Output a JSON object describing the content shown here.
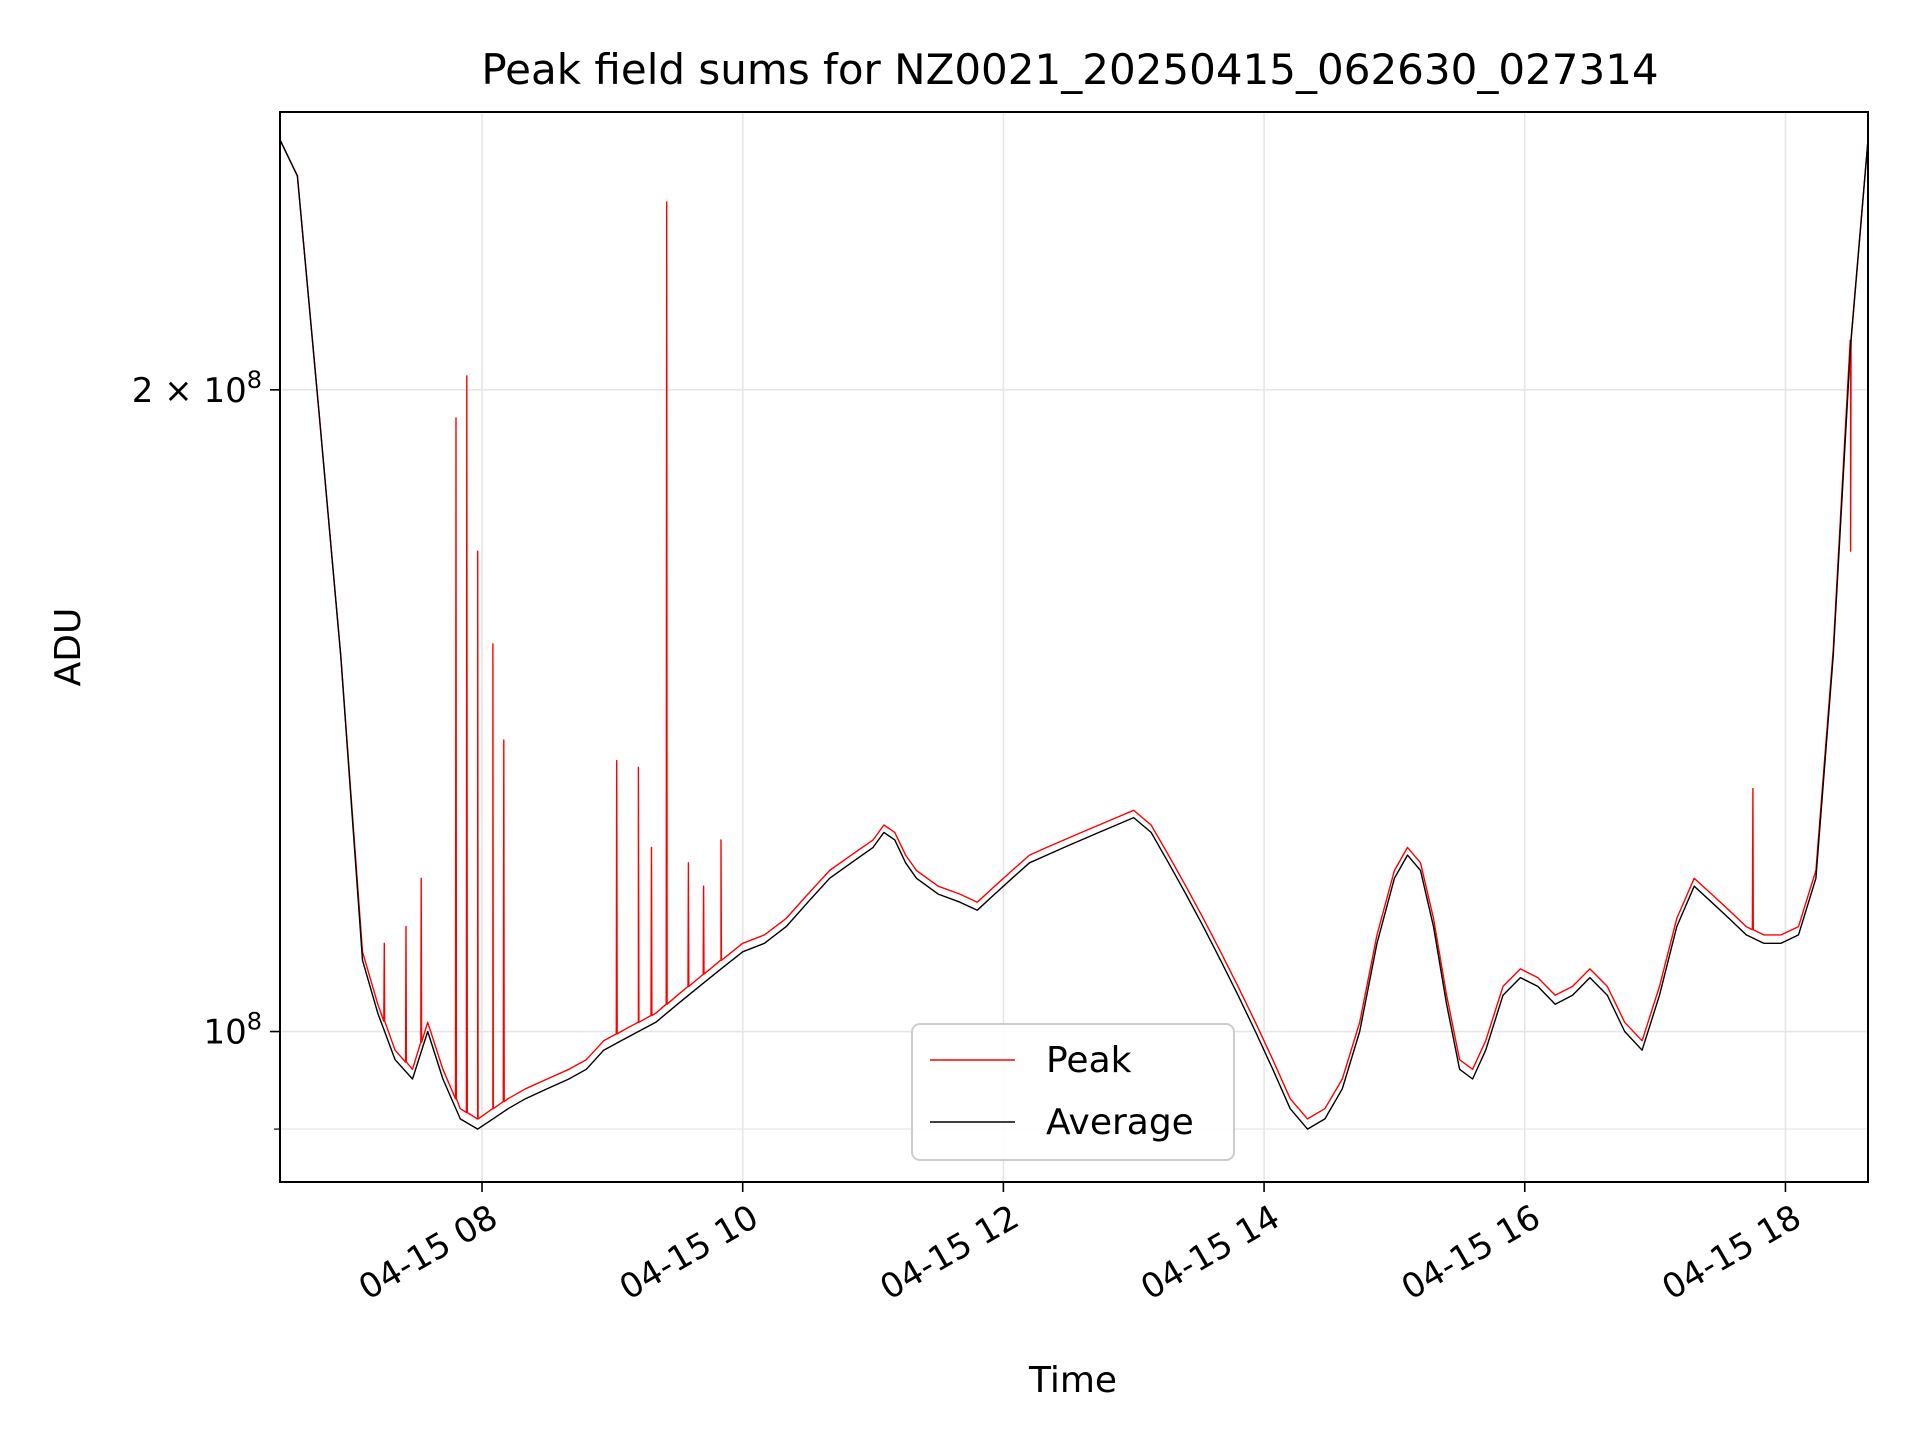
{
  "chart_data": {
    "type": "line",
    "title": "Peak field sums for NZ0021_20250415_062630_027314",
    "xlabel": "Time",
    "ylabel": "ADU",
    "yscale": "log",
    "xlim": [
      "04-15 06:27",
      "04-15 18:38"
    ],
    "ylim": [
      85000000,
      270000000
    ],
    "grid": true,
    "legend_placement": "lower center",
    "x_ticks": [
      {
        "t": "2025-04-15T08:00",
        "label": "04-15 08"
      },
      {
        "t": "2025-04-15T10:00",
        "label": "04-15 10"
      },
      {
        "t": "2025-04-15T12:00",
        "label": "04-15 12"
      },
      {
        "t": "2025-04-15T14:00",
        "label": "04-15 14"
      },
      {
        "t": "2025-04-15T16:00",
        "label": "04-15 16"
      },
      {
        "t": "2025-04-15T18:00",
        "label": "04-15 18"
      }
    ],
    "y_ticks": [
      {
        "value": 100000000,
        "base": "10",
        "exp": "8",
        "coef": ""
      },
      {
        "value": 200000000,
        "base": "10",
        "exp": "8",
        "coef": "2 × "
      }
    ],
    "y_minor_ticks": [
      90000000
    ],
    "series": [
      {
        "name": "Average",
        "color": "#000000",
        "points": [
          [
            "06:27",
            262
          ],
          [
            "06:35",
            252
          ],
          [
            "06:45",
            195
          ],
          [
            "06:55",
            150
          ],
          [
            "07:05",
            108
          ],
          [
            "07:12",
            102
          ],
          [
            "07:20",
            97
          ],
          [
            "07:28",
            95
          ],
          [
            "07:35",
            100
          ],
          [
            "07:42",
            95
          ],
          [
            "07:50",
            91
          ],
          [
            "07:58",
            90
          ],
          [
            "08:05",
            91
          ],
          [
            "08:12",
            92
          ],
          [
            "08:20",
            93
          ],
          [
            "08:30",
            94
          ],
          [
            "08:40",
            95
          ],
          [
            "08:48",
            96
          ],
          [
            "08:56",
            98
          ],
          [
            "09:04",
            99
          ],
          [
            "09:12",
            100
          ],
          [
            "09:20",
            101
          ],
          [
            "09:30",
            103
          ],
          [
            "09:40",
            105
          ],
          [
            "09:50",
            107
          ],
          [
            "10:00",
            109
          ],
          [
            "10:10",
            110
          ],
          [
            "10:20",
            112
          ],
          [
            "10:30",
            115
          ],
          [
            "10:40",
            118
          ],
          [
            "10:50",
            120
          ],
          [
            "11:00",
            122
          ],
          [
            "11:05",
            124
          ],
          [
            "11:10",
            123
          ],
          [
            "11:15",
            120
          ],
          [
            "11:20",
            118
          ],
          [
            "11:30",
            116
          ],
          [
            "11:40",
            115
          ],
          [
            "11:48",
            114
          ],
          [
            "11:56",
            116
          ],
          [
            "12:04",
            118
          ],
          [
            "12:12",
            120
          ],
          [
            "12:20",
            121
          ],
          [
            "12:28",
            122
          ],
          [
            "12:36",
            123
          ],
          [
            "12:44",
            124
          ],
          [
            "12:52",
            125
          ],
          [
            "13:00",
            126
          ],
          [
            "13:08",
            124
          ],
          [
            "13:16",
            120
          ],
          [
            "13:24",
            116
          ],
          [
            "13:32",
            112
          ],
          [
            "13:40",
            108
          ],
          [
            "13:48",
            104
          ],
          [
            "13:56",
            100
          ],
          [
            "14:04",
            96
          ],
          [
            "14:12",
            92
          ],
          [
            "14:20",
            90
          ],
          [
            "14:28",
            91
          ],
          [
            "14:36",
            94
          ],
          [
            "14:44",
            100
          ],
          [
            "14:52",
            110
          ],
          [
            "15:00",
            118
          ],
          [
            "15:06",
            121
          ],
          [
            "15:12",
            119
          ],
          [
            "15:18",
            112
          ],
          [
            "15:24",
            103
          ],
          [
            "15:30",
            96
          ],
          [
            "15:36",
            95
          ],
          [
            "15:42",
            98
          ],
          [
            "15:50",
            104
          ],
          [
            "15:58",
            106
          ],
          [
            "16:06",
            105
          ],
          [
            "16:14",
            103
          ],
          [
            "16:22",
            104
          ],
          [
            "16:30",
            106
          ],
          [
            "16:38",
            104
          ],
          [
            "16:46",
            100
          ],
          [
            "16:54",
            98
          ],
          [
            "17:02",
            104
          ],
          [
            "17:10",
            112
          ],
          [
            "17:18",
            117
          ],
          [
            "17:26",
            115
          ],
          [
            "17:34",
            113
          ],
          [
            "17:42",
            111
          ],
          [
            "17:50",
            110
          ],
          [
            "17:58",
            110
          ],
          [
            "18:06",
            111
          ],
          [
            "18:14",
            118
          ],
          [
            "18:22",
            150
          ],
          [
            "18:30",
            210
          ],
          [
            "18:38",
            262
          ]
        ]
      },
      {
        "name": "Peak",
        "color": "#ff0000",
        "points": [
          [
            "06:27",
            262
          ],
          [
            "06:35",
            252
          ],
          [
            "06:45",
            195
          ],
          [
            "06:55",
            150
          ],
          [
            "07:05",
            109
          ],
          [
            "07:12",
            103
          ],
          [
            "07:20",
            98
          ],
          [
            "07:28",
            96
          ],
          [
            "07:35",
            101
          ],
          [
            "07:42",
            96
          ],
          [
            "07:50",
            92
          ],
          [
            "07:58",
            91
          ],
          [
            "08:05",
            92
          ],
          [
            "08:12",
            93
          ],
          [
            "08:20",
            94
          ],
          [
            "08:30",
            95
          ],
          [
            "08:40",
            96
          ],
          [
            "08:48",
            97
          ],
          [
            "08:56",
            99
          ],
          [
            "09:04",
            100
          ],
          [
            "09:12",
            101
          ],
          [
            "09:20",
            102
          ],
          [
            "09:30",
            104
          ],
          [
            "09:40",
            106
          ],
          [
            "09:50",
            108
          ],
          [
            "10:00",
            110
          ],
          [
            "10:10",
            111
          ],
          [
            "10:20",
            113
          ],
          [
            "10:30",
            116
          ],
          [
            "10:40",
            119
          ],
          [
            "10:50",
            121
          ],
          [
            "11:00",
            123
          ],
          [
            "11:05",
            125
          ],
          [
            "11:10",
            124
          ],
          [
            "11:15",
            121
          ],
          [
            "11:20",
            119
          ],
          [
            "11:30",
            117
          ],
          [
            "11:40",
            116
          ],
          [
            "11:48",
            115
          ],
          [
            "11:56",
            117
          ],
          [
            "12:04",
            119
          ],
          [
            "12:12",
            121
          ],
          [
            "12:20",
            122
          ],
          [
            "12:28",
            123
          ],
          [
            "12:36",
            124
          ],
          [
            "12:44",
            125
          ],
          [
            "12:52",
            126
          ],
          [
            "13:00",
            127
          ],
          [
            "13:08",
            125
          ],
          [
            "13:16",
            121
          ],
          [
            "13:24",
            117
          ],
          [
            "13:32",
            113
          ],
          [
            "13:40",
            109
          ],
          [
            "13:48",
            105
          ],
          [
            "13:56",
            101
          ],
          [
            "14:04",
            97
          ],
          [
            "14:12",
            93
          ],
          [
            "14:20",
            91
          ],
          [
            "14:28",
            92
          ],
          [
            "14:36",
            95
          ],
          [
            "14:44",
            101
          ],
          [
            "14:52",
            111
          ],
          [
            "15:00",
            119
          ],
          [
            "15:06",
            122
          ],
          [
            "15:12",
            120
          ],
          [
            "15:18",
            113
          ],
          [
            "15:24",
            104
          ],
          [
            "15:30",
            97
          ],
          [
            "15:36",
            96
          ],
          [
            "15:42",
            99
          ],
          [
            "15:50",
            105
          ],
          [
            "15:58",
            107
          ],
          [
            "16:06",
            106
          ],
          [
            "16:14",
            104
          ],
          [
            "16:22",
            105
          ],
          [
            "16:30",
            107
          ],
          [
            "16:38",
            105
          ],
          [
            "16:46",
            101
          ],
          [
            "16:54",
            99
          ],
          [
            "17:02",
            105
          ],
          [
            "17:10",
            113
          ],
          [
            "17:18",
            118
          ],
          [
            "17:26",
            116
          ],
          [
            "17:34",
            114
          ],
          [
            "17:42",
            112
          ],
          [
            "17:50",
            111
          ],
          [
            "17:58",
            111
          ],
          [
            "18:06",
            112
          ],
          [
            "18:14",
            119
          ],
          [
            "18:22",
            151
          ],
          [
            "18:30",
            211
          ],
          [
            "18:38",
            262
          ]
        ],
        "spikes": [
          [
            "07:15",
            110
          ],
          [
            "07:25",
            112
          ],
          [
            "07:32",
            118
          ],
          [
            "07:48",
            194
          ],
          [
            "07:53",
            203
          ],
          [
            "07:58",
            168
          ],
          [
            "08:05",
            152
          ],
          [
            "08:10",
            137
          ],
          [
            "09:02",
            134
          ],
          [
            "09:12",
            133
          ],
          [
            "09:18",
            122
          ],
          [
            "09:25",
            245
          ],
          [
            "09:35",
            120
          ],
          [
            "09:42",
            117
          ],
          [
            "09:50",
            123
          ],
          [
            "17:45",
            130
          ],
          [
            "18:30",
            168
          ]
        ]
      }
    ],
    "y_unit_scale": 1000000,
    "legend": [
      {
        "label": "Peak",
        "color": "#ff0000"
      },
      {
        "label": "Average",
        "color": "#000000"
      }
    ]
  }
}
